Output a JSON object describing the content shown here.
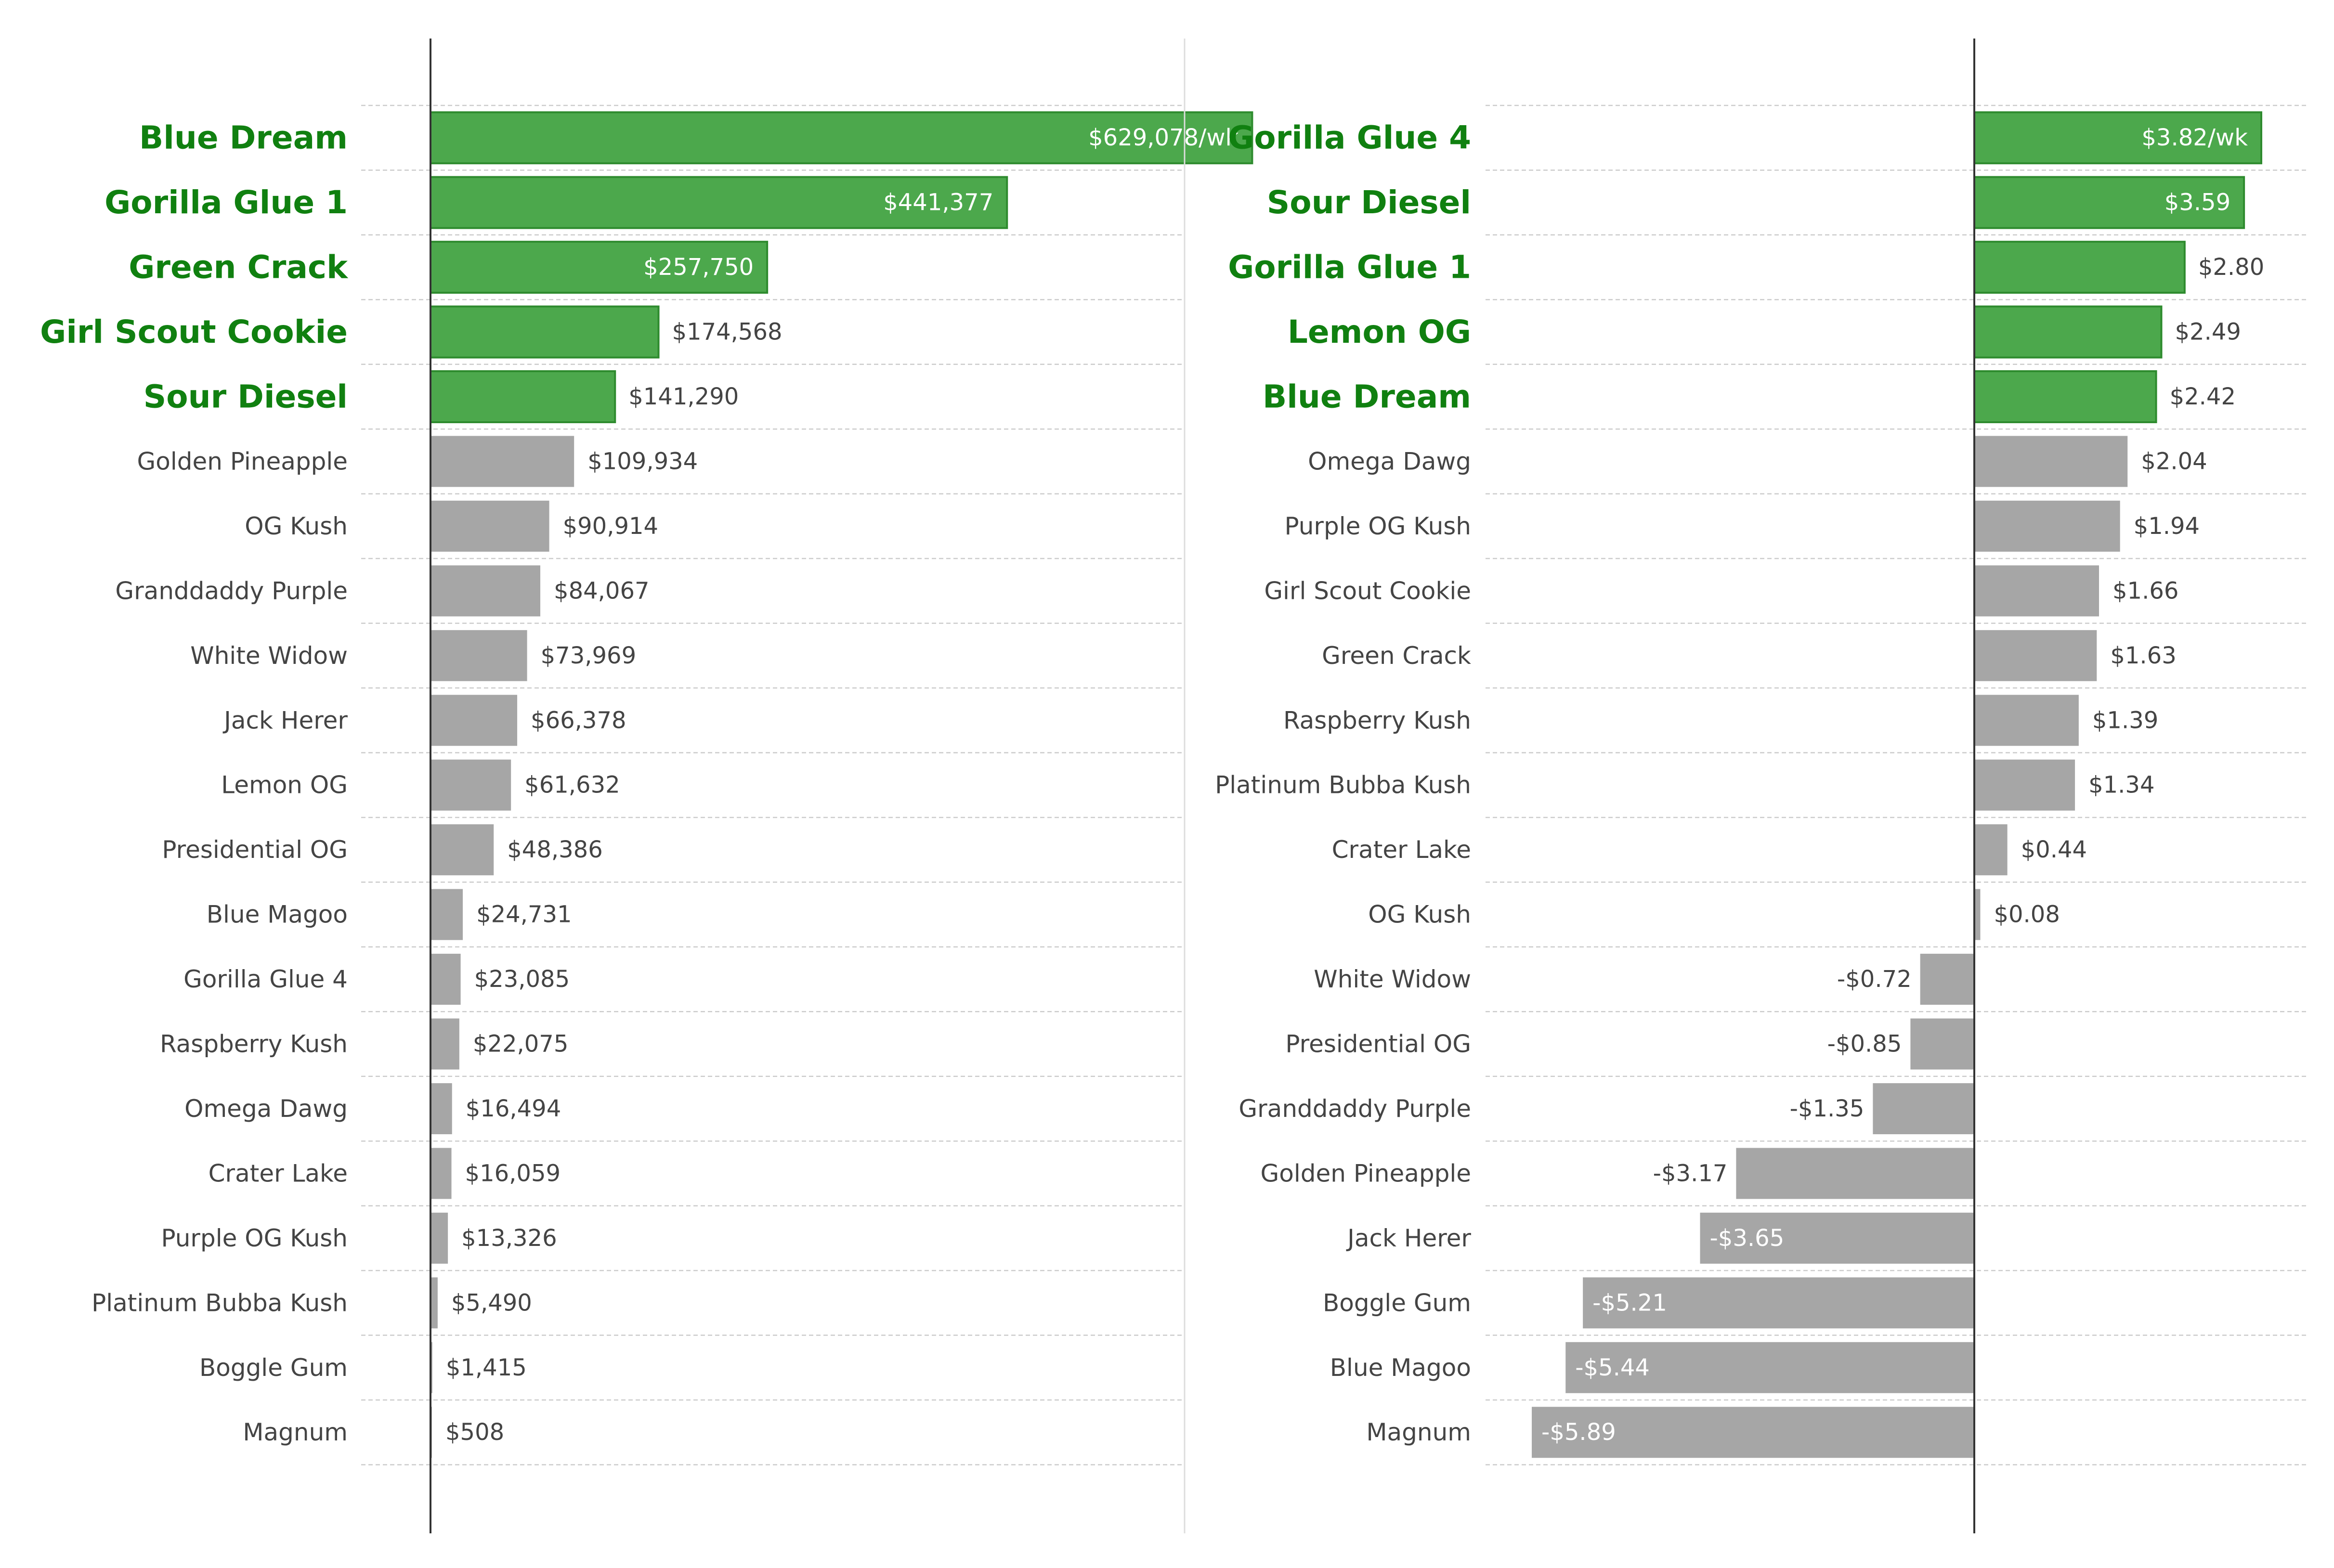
{
  "chart_data": [
    {
      "type": "bar",
      "orientation": "horizontal",
      "highlight_count": 5,
      "categories": [
        "Blue Dream",
        "Gorilla Glue 1",
        "Green Crack",
        "Girl Scout Cookie",
        "Sour Diesel",
        "Golden Pineapple",
        "OG Kush",
        "Granddaddy Purple",
        "White Widow",
        "Jack Herer",
        "Lemon OG",
        "Presidential OG",
        "Blue Magoo",
        "Gorilla Glue 4",
        "Raspberry Kush",
        "Omega Dawg",
        "Crater Lake",
        "Purple OG Kush",
        "Platinum Bubba Kush",
        "Boggle Gum",
        "Magnum"
      ],
      "values": [
        629078,
        441377,
        257750,
        174568,
        141290,
        109934,
        90914,
        84067,
        73969,
        66378,
        61632,
        48386,
        24731,
        23085,
        22075,
        16494,
        16059,
        13326,
        5490,
        1415,
        508
      ],
      "value_labels": [
        "$629,078/wk",
        "$441,377",
        "$257,750",
        "$174,568",
        "$141,290",
        "$109,934",
        "$90,914",
        "$84,067",
        "$73,969",
        "$66,378",
        "$61,632",
        "$48,386",
        "$24,731",
        "$23,085",
        "$22,075",
        "$16,494",
        "$16,059",
        "$13,326",
        "$5,490",
        "$1,415",
        "$508"
      ],
      "xlim": [
        0,
        690000
      ],
      "grid": true
    },
    {
      "type": "bar",
      "orientation": "horizontal",
      "highlight_count": 5,
      "categories": [
        "Gorilla Glue 4",
        "Sour Diesel",
        "Gorilla Glue 1",
        "Lemon OG",
        "Blue Dream",
        "Omega Dawg",
        "Purple OG Kush",
        "Girl Scout Cookie",
        "Green Crack",
        "Raspberry Kush",
        "Platinum Bubba Kush",
        "Crater Lake",
        "OG Kush",
        "White Widow",
        "Presidential OG",
        "Granddaddy Purple",
        "Golden Pineapple",
        "Jack Herer",
        "Boggle Gum",
        "Blue Magoo",
        "Magnum"
      ],
      "values": [
        3.82,
        3.59,
        2.8,
        2.49,
        2.42,
        2.04,
        1.94,
        1.66,
        1.63,
        1.39,
        1.34,
        0.44,
        0.08,
        -0.72,
        -0.85,
        -1.35,
        -3.17,
        -3.65,
        -5.21,
        -5.44,
        -5.89
      ],
      "value_labels": [
        "$3.82/wk",
        "$3.59",
        "$2.80",
        "$2.49",
        "$2.42",
        "$2.04",
        "$1.94",
        "$1.66",
        "$1.63",
        "$1.39",
        "$1.34",
        "$0.44",
        "$0.08",
        "-$0.72",
        "-$0.85",
        "-$1.35",
        "-$3.17",
        "-$3.65",
        "-$5.21",
        "-$5.44",
        "-$5.89"
      ],
      "xlim": [
        -6.5,
        4.4
      ],
      "grid": true
    }
  ],
  "colors": {
    "highlight_bar": "#4ca84c",
    "highlight_edge": "#2e8b2e",
    "highlight_text": "#108010",
    "other_bar": "#a6a6a6",
    "text": "#444444",
    "inside_label": "#ffffff",
    "grid": "#cccccc",
    "zero_line": "#333333"
  }
}
